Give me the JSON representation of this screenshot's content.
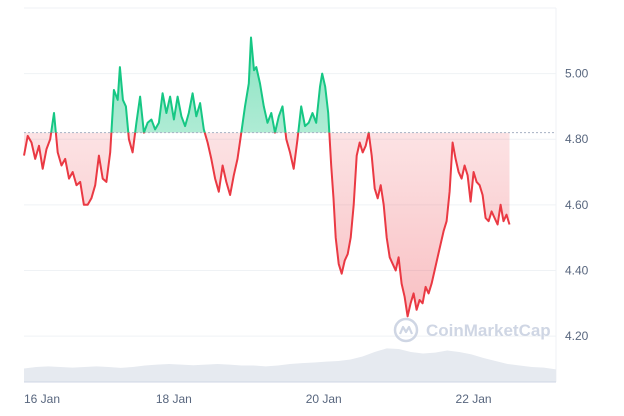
{
  "chart_data": {
    "type": "line",
    "watermark": "CoinMarketCap",
    "baseline": 4.82,
    "ylim": [
      4.06,
      5.2
    ],
    "yticks": [
      {
        "value": 4.2,
        "label": "4.20"
      },
      {
        "value": 4.4,
        "label": "4.40"
      },
      {
        "value": 4.6,
        "label": "4.60"
      },
      {
        "value": 4.8,
        "label": "4.80"
      },
      {
        "value": 5.0,
        "label": "5.00"
      }
    ],
    "xlim": [
      0,
      7.1
    ],
    "xticks": [
      {
        "value": 0,
        "label": "16 Jan"
      },
      {
        "value": 2,
        "label": "18 Jan"
      },
      {
        "value": 4,
        "label": "20 Jan"
      },
      {
        "value": 6,
        "label": "22 Jan"
      }
    ],
    "colors": {
      "up": "#16c784",
      "down": "#ea3943",
      "baseline": "#a6b0c3",
      "grid": "#eff2f5",
      "volume": "#e6eaf0",
      "axis": "#cfd6e4"
    },
    "series": [
      {
        "points": [
          [
            0.0,
            4.75
          ],
          [
            0.05,
            4.81
          ],
          [
            0.1,
            4.79
          ],
          [
            0.15,
            4.74
          ],
          [
            0.2,
            4.78
          ],
          [
            0.25,
            4.71
          ],
          [
            0.3,
            4.77
          ],
          [
            0.35,
            4.8
          ],
          [
            0.4,
            4.88
          ],
          [
            0.45,
            4.76
          ],
          [
            0.5,
            4.72
          ],
          [
            0.55,
            4.74
          ],
          [
            0.6,
            4.68
          ],
          [
            0.65,
            4.7
          ],
          [
            0.7,
            4.66
          ],
          [
            0.75,
            4.67
          ],
          [
            0.8,
            4.6
          ],
          [
            0.85,
            4.6
          ],
          [
            0.9,
            4.62
          ],
          [
            0.95,
            4.66
          ],
          [
            1.0,
            4.75
          ],
          [
            1.05,
            4.68
          ],
          [
            1.1,
            4.67
          ],
          [
            1.15,
            4.76
          ],
          [
            1.2,
            4.95
          ],
          [
            1.25,
            4.92
          ],
          [
            1.28,
            5.02
          ],
          [
            1.32,
            4.92
          ],
          [
            1.36,
            4.9
          ],
          [
            1.4,
            4.8
          ],
          [
            1.45,
            4.76
          ],
          [
            1.5,
            4.85
          ],
          [
            1.55,
            4.93
          ],
          [
            1.6,
            4.82
          ],
          [
            1.65,
            4.85
          ],
          [
            1.7,
            4.86
          ],
          [
            1.75,
            4.83
          ],
          [
            1.8,
            4.85
          ],
          [
            1.85,
            4.94
          ],
          [
            1.9,
            4.88
          ],
          [
            1.95,
            4.93
          ],
          [
            2.0,
            4.86
          ],
          [
            2.05,
            4.93
          ],
          [
            2.1,
            4.87
          ],
          [
            2.15,
            4.84
          ],
          [
            2.2,
            4.88
          ],
          [
            2.25,
            4.94
          ],
          [
            2.3,
            4.87
          ],
          [
            2.35,
            4.91
          ],
          [
            2.4,
            4.83
          ],
          [
            2.45,
            4.79
          ],
          [
            2.5,
            4.74
          ],
          [
            2.55,
            4.68
          ],
          [
            2.6,
            4.64
          ],
          [
            2.65,
            4.72
          ],
          [
            2.7,
            4.67
          ],
          [
            2.75,
            4.63
          ],
          [
            2.8,
            4.69
          ],
          [
            2.85,
            4.74
          ],
          [
            2.9,
            4.82
          ],
          [
            2.95,
            4.9
          ],
          [
            3.0,
            4.97
          ],
          [
            3.03,
            5.11
          ],
          [
            3.07,
            5.01
          ],
          [
            3.1,
            5.02
          ],
          [
            3.15,
            4.97
          ],
          [
            3.2,
            4.9
          ],
          [
            3.25,
            4.85
          ],
          [
            3.3,
            4.88
          ],
          [
            3.35,
            4.82
          ],
          [
            3.4,
            4.87
          ],
          [
            3.45,
            4.9
          ],
          [
            3.5,
            4.8
          ],
          [
            3.55,
            4.76
          ],
          [
            3.6,
            4.71
          ],
          [
            3.65,
            4.8
          ],
          [
            3.7,
            4.9
          ],
          [
            3.75,
            4.84
          ],
          [
            3.8,
            4.85
          ],
          [
            3.85,
            4.88
          ],
          [
            3.9,
            4.85
          ],
          [
            3.95,
            4.96
          ],
          [
            3.98,
            5.0
          ],
          [
            4.02,
            4.96
          ],
          [
            4.06,
            4.88
          ],
          [
            4.1,
            4.72
          ],
          [
            4.13,
            4.62
          ],
          [
            4.16,
            4.5
          ],
          [
            4.2,
            4.42
          ],
          [
            4.24,
            4.39
          ],
          [
            4.28,
            4.43
          ],
          [
            4.32,
            4.45
          ],
          [
            4.36,
            4.5
          ],
          [
            4.4,
            4.6
          ],
          [
            4.44,
            4.75
          ],
          [
            4.48,
            4.79
          ],
          [
            4.52,
            4.76
          ],
          [
            4.56,
            4.78
          ],
          [
            4.6,
            4.82
          ],
          [
            4.64,
            4.75
          ],
          [
            4.68,
            4.65
          ],
          [
            4.72,
            4.62
          ],
          [
            4.76,
            4.66
          ],
          [
            4.8,
            4.6
          ],
          [
            4.84,
            4.5
          ],
          [
            4.88,
            4.44
          ],
          [
            4.92,
            4.42
          ],
          [
            4.96,
            4.4
          ],
          [
            5.0,
            4.44
          ],
          [
            5.04,
            4.36
          ],
          [
            5.08,
            4.32
          ],
          [
            5.12,
            4.26
          ],
          [
            5.16,
            4.3
          ],
          [
            5.2,
            4.33
          ],
          [
            5.24,
            4.28
          ],
          [
            5.28,
            4.31
          ],
          [
            5.32,
            4.3
          ],
          [
            5.36,
            4.35
          ],
          [
            5.4,
            4.33
          ],
          [
            5.44,
            4.36
          ],
          [
            5.48,
            4.4
          ],
          [
            5.52,
            4.44
          ],
          [
            5.56,
            4.48
          ],
          [
            5.6,
            4.52
          ],
          [
            5.64,
            4.55
          ],
          [
            5.68,
            4.64
          ],
          [
            5.72,
            4.79
          ],
          [
            5.76,
            4.74
          ],
          [
            5.8,
            4.7
          ],
          [
            5.84,
            4.68
          ],
          [
            5.88,
            4.72
          ],
          [
            5.92,
            4.69
          ],
          [
            5.96,
            4.61
          ],
          [
            6.0,
            4.7
          ],
          [
            6.04,
            4.67
          ],
          [
            6.08,
            4.66
          ],
          [
            6.12,
            4.63
          ],
          [
            6.16,
            4.56
          ],
          [
            6.2,
            4.55
          ],
          [
            6.24,
            4.58
          ],
          [
            6.28,
            4.56
          ],
          [
            6.32,
            4.54
          ],
          [
            6.36,
            4.6
          ],
          [
            6.4,
            4.55
          ],
          [
            6.44,
            4.57
          ],
          [
            6.48,
            4.54
          ]
        ]
      }
    ],
    "volume": [
      0.45,
      0.5,
      0.52,
      0.5,
      0.48,
      0.5,
      0.52,
      0.5,
      0.47,
      0.5,
      0.55,
      0.58,
      0.6,
      0.58,
      0.56,
      0.58,
      0.6,
      0.58,
      0.55,
      0.55,
      0.52,
      0.55,
      0.6,
      0.63,
      0.65,
      0.68,
      0.7,
      0.75,
      0.85,
      1.0,
      1.12,
      1.1,
      1.0,
      0.95,
      0.98,
      1.05,
      1.0,
      0.92,
      0.8,
      0.7,
      0.6,
      0.55,
      0.5,
      0.48,
      0.42
    ]
  }
}
